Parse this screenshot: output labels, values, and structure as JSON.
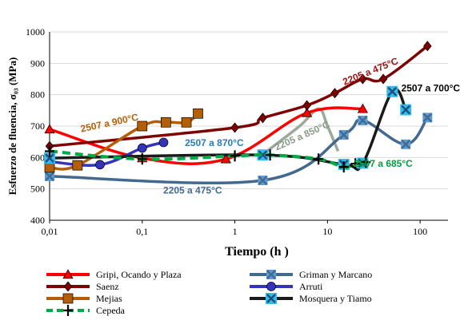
{
  "chart_data": {
    "type": "line",
    "xlabel": "Tiempo (h )",
    "ylabel": "Esfuerzo de fluencia, σ₀₃ (MPa)",
    "x_scale": "log",
    "xlim": [
      0.01,
      200
    ],
    "ylim": [
      400,
      1000
    ],
    "x_ticks": [
      {
        "value": 0.01,
        "label": "0,01"
      },
      {
        "value": 0.1,
        "label": "0,1"
      },
      {
        "value": 1,
        "label": "1"
      },
      {
        "value": 10,
        "label": "10"
      },
      {
        "value": 100,
        "label": "100"
      }
    ],
    "y_ticks": [
      400,
      500,
      600,
      700,
      800,
      900,
      1000
    ],
    "grid": "horizontal",
    "legend_position": "bottom",
    "series": [
      {
        "name": "Gripi, Ocando y Plaza",
        "color": "#ff0000",
        "marker": "triangle",
        "points": [
          [
            0.01,
            690
          ],
          [
            0.1,
            598
          ],
          [
            0.8,
            595
          ],
          [
            6,
            742
          ],
          [
            24,
            755
          ]
        ]
      },
      {
        "name": "Griman y Marcano",
        "color": "#44698f",
        "marker": "x",
        "points": [
          [
            0.01,
            540
          ],
          [
            2,
            527
          ],
          [
            15,
            672
          ],
          [
            24,
            718
          ],
          [
            70,
            642
          ],
          [
            120,
            727
          ]
        ]
      },
      {
        "name": "Saenz",
        "color": "#7f0000",
        "marker": "diamond",
        "points": [
          [
            0.01,
            636
          ],
          [
            1,
            695
          ],
          [
            2,
            726
          ],
          [
            6,
            766
          ],
          [
            12,
            805
          ],
          [
            24,
            850
          ],
          [
            40,
            850
          ],
          [
            120,
            955
          ]
        ]
      },
      {
        "name": "Arruti",
        "color": "#3333bb",
        "marker": "circle",
        "points": [
          [
            0.01,
            587
          ],
          [
            0.035,
            577
          ],
          [
            0.1,
            630
          ],
          [
            0.17,
            648
          ]
        ]
      },
      {
        "name": "Mejias",
        "color": "#b45f06",
        "marker": "square",
        "points": [
          [
            0.01,
            568
          ],
          [
            0.02,
            575
          ],
          [
            0.1,
            700
          ],
          [
            0.18,
            712
          ],
          [
            0.3,
            712
          ],
          [
            0.4,
            740
          ]
        ]
      },
      {
        "name": "Mosquera y Tiamo",
        "color": "#1a1a1a",
        "marker": "xbox",
        "points": [
          [
            0.01,
            598
          ],
          [
            2,
            608
          ],
          [
            15,
            578
          ],
          [
            24,
            582
          ],
          [
            50,
            810
          ],
          [
            70,
            752
          ]
        ]
      },
      {
        "name": "Cepeda",
        "color": "#00aa44",
        "marker": "plus",
        "points": [
          [
            0.01,
            620
          ],
          [
            0.1,
            595
          ],
          [
            1,
            605
          ],
          [
            2.4,
            608
          ],
          [
            8,
            595
          ],
          [
            15,
            570
          ],
          [
            20,
            580
          ],
          [
            26,
            585
          ]
        ]
      }
    ],
    "extra_lines": [
      {
        "color": "#9aaa9a",
        "points": [
          [
            2,
            610
          ],
          [
            5,
            700
          ],
          [
            8,
            755
          ],
          [
            10,
            700
          ],
          [
            13,
            620
          ]
        ]
      }
    ],
    "annotations": [
      {
        "text": "2205 a 475°C",
        "x": 30,
        "y": 865,
        "color": "#a31515",
        "rotate": -22
      },
      {
        "text": "2507 a 900°C",
        "x": 0.045,
        "y": 700,
        "color": "#b45f06",
        "rotate": -12
      },
      {
        "text": "2507 a 870°C",
        "x": 0.6,
        "y": 637,
        "color": "#1f7fc0",
        "rotate": 0
      },
      {
        "text": "2205 a 850°C",
        "x": 5.5,
        "y": 660,
        "color": "#8a9a8a",
        "rotate": -24
      },
      {
        "text": "2507 a 700°C",
        "x": 130,
        "y": 810,
        "color": "#000000",
        "rotate": 0
      },
      {
        "text": "2205 a 475°C",
        "x": 0.35,
        "y": 485,
        "color": "#44698f",
        "rotate": 0
      },
      {
        "text": "2507 a 685°C",
        "x": 40,
        "y": 570,
        "color": "#00a040",
        "rotate": 0
      }
    ]
  }
}
